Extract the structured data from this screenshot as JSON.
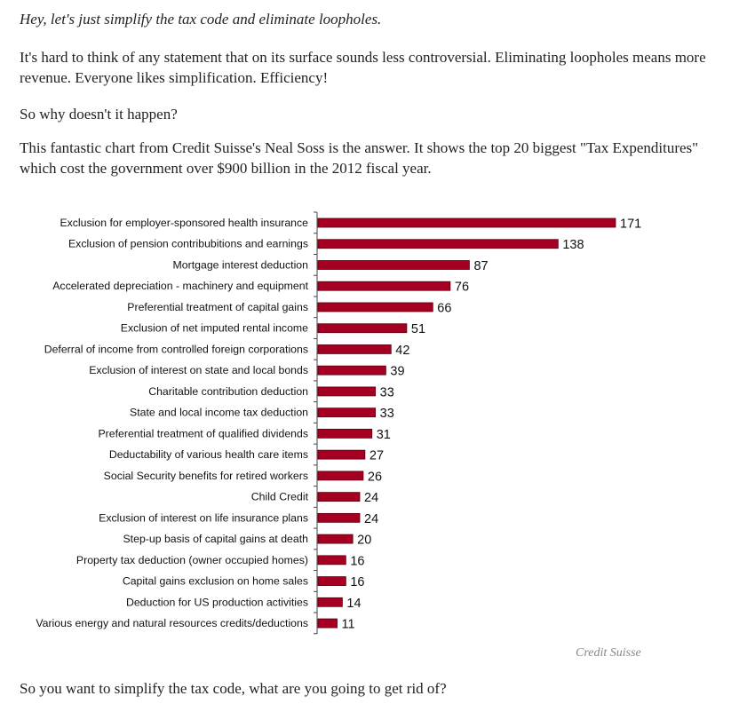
{
  "article": {
    "lead": "Hey, let's just simplify the tax code and eliminate loopholes.",
    "para1": "It's hard to think of any statement that on its surface sounds less controversial. Eliminating loopholes means more revenue. Everyone likes simplification. Efficiency!",
    "para2": "So why doesn't it happen?",
    "para3": "This fantastic chart from Credit Suisse's Neal Soss is the answer. It shows the top 20 biggest \"Tax Expenditures\" which cost the government over $900 billion in the 2012 fiscal year.",
    "source": "Credit Suisse",
    "closing": "So you want to simplify the tax code, what are you going to get rid of?"
  },
  "chart_data": {
    "type": "bar",
    "orientation": "horizontal",
    "bar_color": "#a50021",
    "categories": [
      "Exclusion for employer-sponsored health insurance",
      "Exclusion of pension contribubitions and earnings",
      "Mortgage interest deduction",
      "Accelerated depreciation - machinery and equipment",
      "Preferential treatment of capital gains",
      "Exclusion of net imputed rental income",
      "Deferral of income from controlled foreign corporations",
      "Exclusion of interest on state and local bonds",
      "Charitable contribution deduction",
      "State and local income tax deduction",
      "Preferential treatment of qualified dividends",
      "Deductability of various health care items",
      "Social Security benefits for retired workers",
      "Child Credit",
      "Exclusion of interest on life insurance plans",
      "Step-up basis of capital gains at death",
      "Property tax deduction (owner occupied homes)",
      "Capital gains exclusion on home sales",
      "Deduction for US production activities",
      "Various energy and natural resources credits/deductions"
    ],
    "values": [
      171,
      138,
      87,
      76,
      66,
      51,
      42,
      39,
      33,
      33,
      31,
      27,
      26,
      24,
      24,
      20,
      16,
      16,
      14,
      11
    ],
    "data_labels": true,
    "xlim": [
      0,
      171
    ]
  }
}
